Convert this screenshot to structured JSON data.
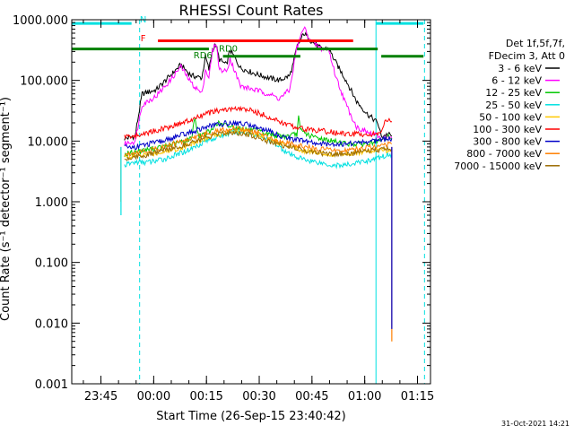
{
  "chart_data": {
    "type": "line",
    "title": "RHESSI Count Rates",
    "xlabel": "Start Time (26-Sep-15 23:40:42)",
    "ylabel": "Count Rate (s⁻¹ detector⁻¹ segment⁻¹)",
    "yscale": "log",
    "ylim": [
      0.001,
      1000
    ],
    "xlim_minutes": [
      -4,
      98
    ],
    "y_ticks": [
      {
        "value": 0.001,
        "label": "0.001"
      },
      {
        "value": 0.01,
        "label": "0.010"
      },
      {
        "value": 0.1,
        "label": "0.100"
      },
      {
        "value": 1,
        "label": "1.000"
      },
      {
        "value": 10,
        "label": "10.000"
      },
      {
        "value": 100,
        "label": "100.000"
      },
      {
        "value": 1000,
        "label": "1000.000"
      }
    ],
    "x_ticks": [
      {
        "minute": 4.3,
        "label": "23:45"
      },
      {
        "minute": 19.3,
        "label": "00:00"
      },
      {
        "minute": 34.3,
        "label": "00:15"
      },
      {
        "minute": 49.3,
        "label": "00:30"
      },
      {
        "minute": 64.3,
        "label": "00:45"
      },
      {
        "minute": 79.3,
        "label": "01:00"
      },
      {
        "minute": 94.3,
        "label": "01:15"
      }
    ],
    "legend_header": [
      "Det 1f,5f,7f,",
      "FDecim 3, Att 0"
    ],
    "legend_position": "right",
    "series": [
      {
        "name": "3 - 6 keV",
        "color": "#000000",
        "points": [
          [
            11,
            11
          ],
          [
            14,
            12
          ],
          [
            16,
            60
          ],
          [
            20,
            70
          ],
          [
            24,
            120
          ],
          [
            27,
            180
          ],
          [
            30,
            120
          ],
          [
            33,
            110
          ],
          [
            34,
            250
          ],
          [
            35,
            150
          ],
          [
            36,
            320
          ],
          [
            37,
            380
          ],
          [
            38,
            220
          ],
          [
            40,
            180
          ],
          [
            41,
            320
          ],
          [
            44,
            160
          ],
          [
            48,
            130
          ],
          [
            52,
            110
          ],
          [
            55,
            100
          ],
          [
            58,
            120
          ],
          [
            59,
            190
          ],
          [
            60,
            350
          ],
          [
            62,
            600
          ],
          [
            64,
            450
          ],
          [
            67,
            330
          ],
          [
            69,
            340
          ],
          [
            71,
            200
          ],
          [
            74,
            100
          ],
          [
            77,
            45
          ],
          [
            80,
            28
          ],
          [
            83,
            20
          ],
          [
            84,
            12
          ],
          [
            86,
            13
          ],
          [
            87,
            12
          ]
        ]
      },
      {
        "name": "6 - 12 keV",
        "color": "#ff00ff",
        "points": [
          [
            11,
            9
          ],
          [
            14,
            10
          ],
          [
            16,
            40
          ],
          [
            20,
            55
          ],
          [
            24,
            100
          ],
          [
            27,
            170
          ],
          [
            30,
            90
          ],
          [
            33,
            60
          ],
          [
            34,
            150
          ],
          [
            35,
            110
          ],
          [
            36,
            300
          ],
          [
            37,
            420
          ],
          [
            38,
            150
          ],
          [
            40,
            140
          ],
          [
            41,
            230
          ],
          [
            44,
            80
          ],
          [
            48,
            70
          ],
          [
            52,
            60
          ],
          [
            55,
            50
          ],
          [
            58,
            70
          ],
          [
            59,
            160
          ],
          [
            60,
            350
          ],
          [
            62,
            750
          ],
          [
            64,
            450
          ],
          [
            67,
            330
          ],
          [
            69,
            330
          ],
          [
            71,
            120
          ],
          [
            74,
            40
          ],
          [
            77,
            17
          ],
          [
            80,
            14
          ],
          [
            83,
            12
          ],
          [
            84,
            11
          ],
          [
            86,
            12
          ],
          [
            87,
            11
          ]
        ]
      },
      {
        "name": "12 - 25 keV",
        "color": "#00c800",
        "points": [
          [
            11,
            6
          ],
          [
            16,
            7
          ],
          [
            22,
            8
          ],
          [
            28,
            10
          ],
          [
            30,
            11
          ],
          [
            31,
            25
          ],
          [
            32,
            12
          ],
          [
            36,
            15
          ],
          [
            37,
            20
          ],
          [
            40,
            18
          ],
          [
            44,
            16
          ],
          [
            48,
            15
          ],
          [
            52,
            13
          ],
          [
            56,
            12
          ],
          [
            57,
            12
          ],
          [
            60,
            13
          ],
          [
            60.5,
            25
          ],
          [
            61,
            15
          ],
          [
            64,
            12
          ],
          [
            70,
            10
          ],
          [
            75,
            9
          ],
          [
            80,
            9
          ],
          [
            84,
            10
          ],
          [
            86,
            12
          ],
          [
            87,
            11
          ]
        ]
      },
      {
        "name": "25 - 50 keV",
        "color": "#00e0e0",
        "points": [
          [
            11,
            4
          ],
          [
            14,
            4.5
          ],
          [
            18,
            4.5
          ],
          [
            22,
            5
          ],
          [
            26,
            6
          ],
          [
            30,
            7.5
          ],
          [
            34,
            10
          ],
          [
            38,
            12
          ],
          [
            42,
            14
          ],
          [
            46,
            14
          ],
          [
            50,
            12
          ],
          [
            54,
            9
          ],
          [
            58,
            6
          ],
          [
            62,
            5
          ],
          [
            66,
            4.5
          ],
          [
            70,
            4
          ],
          [
            74,
            4
          ],
          [
            78,
            4.5
          ],
          [
            82,
            5
          ],
          [
            86,
            6
          ],
          [
            87,
            6
          ]
        ]
      },
      {
        "name": "50 - 100 keV",
        "color": "#ffc800",
        "points": [
          [
            11,
            5.5
          ],
          [
            18,
            6
          ],
          [
            26,
            7.5
          ],
          [
            32,
            10
          ],
          [
            38,
            13
          ],
          [
            42,
            15
          ],
          [
            46,
            14
          ],
          [
            50,
            12
          ],
          [
            56,
            9
          ],
          [
            62,
            7
          ],
          [
            70,
            6
          ],
          [
            78,
            6.5
          ],
          [
            84,
            7
          ],
          [
            87,
            7
          ]
        ]
      },
      {
        "name": "100 - 300 keV",
        "color": "#ff0000",
        "points": [
          [
            11,
            12
          ],
          [
            14,
            12
          ],
          [
            18,
            14
          ],
          [
            22,
            16
          ],
          [
            26,
            19
          ],
          [
            30,
            22
          ],
          [
            34,
            28
          ],
          [
            38,
            32
          ],
          [
            42,
            34
          ],
          [
            46,
            33
          ],
          [
            50,
            28
          ],
          [
            54,
            22
          ],
          [
            58,
            18
          ],
          [
            62,
            16
          ],
          [
            66,
            15
          ],
          [
            70,
            14
          ],
          [
            74,
            13
          ],
          [
            78,
            13
          ],
          [
            82,
            13
          ],
          [
            84,
            14
          ],
          [
            85,
            20
          ],
          [
            86,
            22
          ],
          [
            87,
            21
          ]
        ]
      },
      {
        "name": "300 - 800 keV",
        "color": "#0000c8",
        "points": [
          [
            11,
            8
          ],
          [
            14,
            8
          ],
          [
            18,
            9
          ],
          [
            22,
            10
          ],
          [
            26,
            12
          ],
          [
            30,
            14
          ],
          [
            34,
            17
          ],
          [
            38,
            19
          ],
          [
            42,
            20
          ],
          [
            46,
            19
          ],
          [
            50,
            16
          ],
          [
            54,
            13
          ],
          [
            58,
            11
          ],
          [
            62,
            10
          ],
          [
            66,
            9
          ],
          [
            70,
            9
          ],
          [
            74,
            9
          ],
          [
            78,
            9.5
          ],
          [
            82,
            10
          ],
          [
            86,
            11
          ],
          [
            87,
            11
          ]
        ]
      },
      {
        "name": "800 - 7000 keV",
        "color": "#ff7f00",
        "points": [
          [
            11,
            6
          ],
          [
            14,
            6.5
          ],
          [
            18,
            7
          ],
          [
            22,
            8
          ],
          [
            26,
            9.5
          ],
          [
            30,
            11
          ],
          [
            34,
            13
          ],
          [
            38,
            15
          ],
          [
            42,
            16
          ],
          [
            46,
            15
          ],
          [
            50,
            13
          ],
          [
            54,
            10.5
          ],
          [
            58,
            9
          ],
          [
            62,
            8
          ],
          [
            66,
            7.5
          ],
          [
            70,
            7
          ],
          [
            74,
            7
          ],
          [
            78,
            7.5
          ],
          [
            82,
            8
          ],
          [
            86,
            9
          ],
          [
            87,
            9
          ]
        ]
      },
      {
        "name": "7000 - 15000 keV",
        "color": "#9b6b00",
        "points": [
          [
            11,
            5
          ],
          [
            14,
            5.5
          ],
          [
            18,
            6
          ],
          [
            22,
            7
          ],
          [
            26,
            8
          ],
          [
            30,
            9.5
          ],
          [
            34,
            11
          ],
          [
            38,
            13
          ],
          [
            42,
            14
          ],
          [
            46,
            13
          ],
          [
            50,
            11
          ],
          [
            54,
            9
          ],
          [
            58,
            8
          ],
          [
            62,
            7
          ],
          [
            66,
            6.5
          ],
          [
            70,
            6
          ],
          [
            74,
            6
          ],
          [
            78,
            6.5
          ],
          [
            82,
            7
          ],
          [
            86,
            7.5
          ],
          [
            87,
            7.5
          ]
        ]
      }
    ],
    "drops": [
      {
        "minute": 10,
        "color": "#ff7f00",
        "to": 1.0
      },
      {
        "minute": 10,
        "color": "#00e0e0",
        "to": 0.6
      },
      {
        "minute": 87,
        "color": "#ff7f00",
        "to": 0.005
      },
      {
        "minute": 87,
        "color": "#0000c8",
        "to": 0.008
      }
    ],
    "vertical_lines": [
      {
        "minute": -4,
        "color": "#00e0e0",
        "style": "solid"
      },
      {
        "minute": 15.3,
        "color": "#00e0e0",
        "style": "dashed"
      },
      {
        "minute": 82.5,
        "color": "#00e0e0",
        "style": "solid"
      },
      {
        "minute": 96.3,
        "color": "#00e0e0",
        "style": "dashed"
      }
    ],
    "flags": [
      {
        "label": "N",
        "color": "#00e0e0",
        "segments": [
          [
            -4,
            13
          ],
          [
            82.5,
            96
          ]
        ],
        "level": 870
      },
      {
        "label": "F",
        "color": "#ff0000",
        "segments": [
          [
            20.5,
            76
          ]
        ],
        "level": 450
      },
      {
        "label": "RD0",
        "color": "#008000",
        "segments": [
          [
            -4,
            35
          ],
          [
            60,
            83
          ]
        ],
        "level": 330
      },
      {
        "label": "RD6",
        "color": "#008000",
        "segments": [
          [
            39,
            61
          ],
          [
            84,
            96
          ]
        ],
        "level": 250
      }
    ],
    "footer_date": "31-Oct-2021 14:21"
  }
}
